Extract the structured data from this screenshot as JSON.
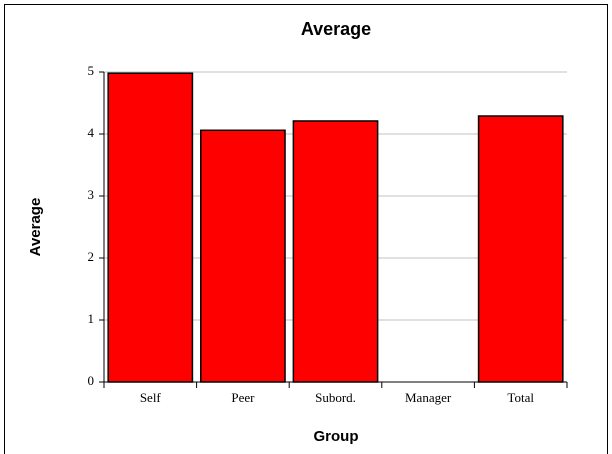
{
  "chart_data": {
    "type": "bar",
    "title": "Average",
    "x_label": "Group",
    "y_label": "Average",
    "categories": [
      "Self",
      "Peer",
      "Subord.",
      "Manager",
      "Total"
    ],
    "values": [
      4.98,
      4.06,
      4.21,
      null,
      4.29
    ],
    "color": "#ff0000",
    "ylim": [
      0,
      5
    ],
    "yticks": [
      0,
      1,
      2,
      3,
      4,
      5
    ],
    "grid": true
  }
}
